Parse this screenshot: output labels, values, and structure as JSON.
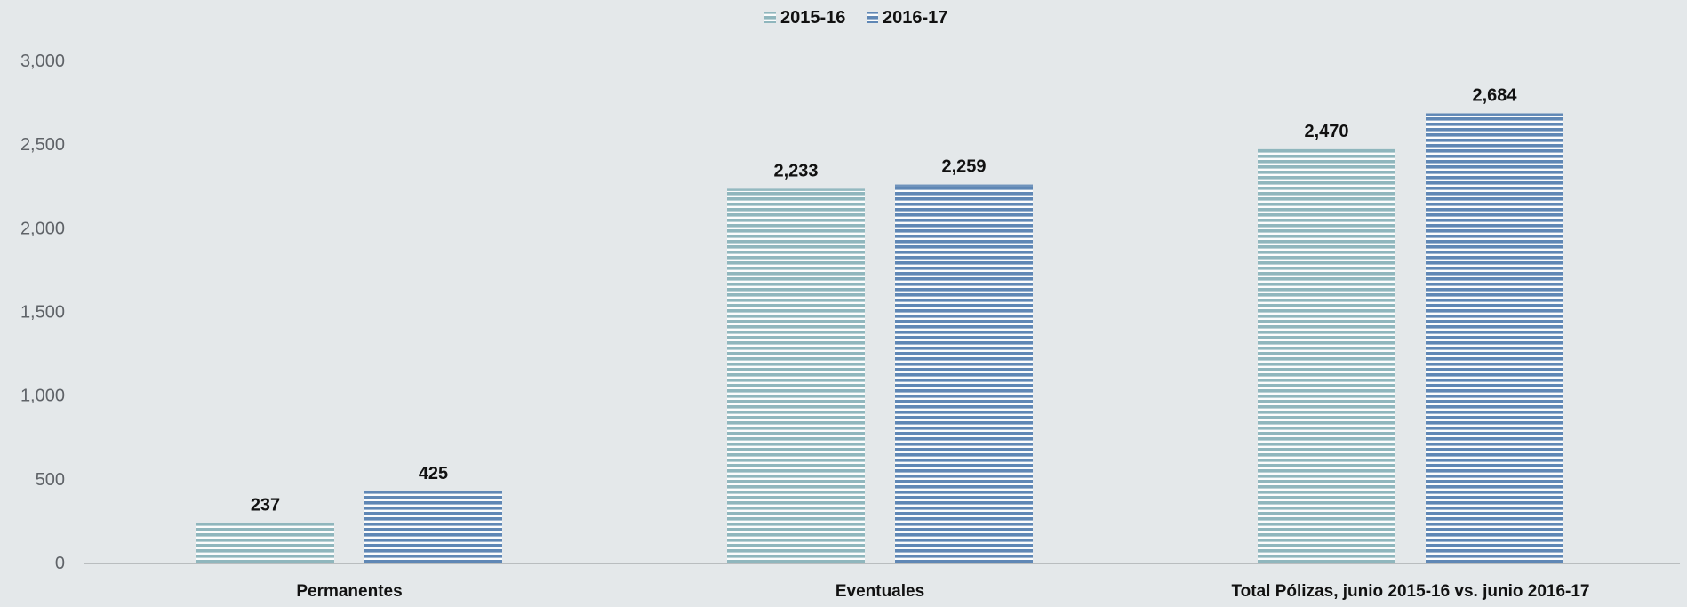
{
  "chart_data": {
    "type": "bar",
    "categories": [
      "Permanentes",
      "Eventuales",
      "Total Pólizas, junio 2015-16  vs. junio 2016-17"
    ],
    "series": [
      {
        "name": "2015-16",
        "values": [
          237,
          2233,
          2470
        ],
        "labels": [
          "237",
          "2,233",
          "2,470"
        ],
        "color": "#8fb6bd"
      },
      {
        "name": "2016-17",
        "values": [
          425,
          2259,
          2684
        ],
        "labels": [
          "425",
          "2,259",
          "2,684"
        ],
        "color": "#5f87b5"
      }
    ],
    "yticks": [
      {
        "value": 0,
        "label": "0"
      },
      {
        "value": 500,
        "label": "500"
      },
      {
        "value": 1000,
        "label": "1,000"
      },
      {
        "value": 1500,
        "label": "1,500"
      },
      {
        "value": 2000,
        "label": "2,000"
      },
      {
        "value": 2500,
        "label": "2,500"
      },
      {
        "value": 3000,
        "label": "3,000"
      }
    ],
    "ylim": [
      0,
      3000
    ],
    "grid": false,
    "legend_position": "top-center"
  }
}
